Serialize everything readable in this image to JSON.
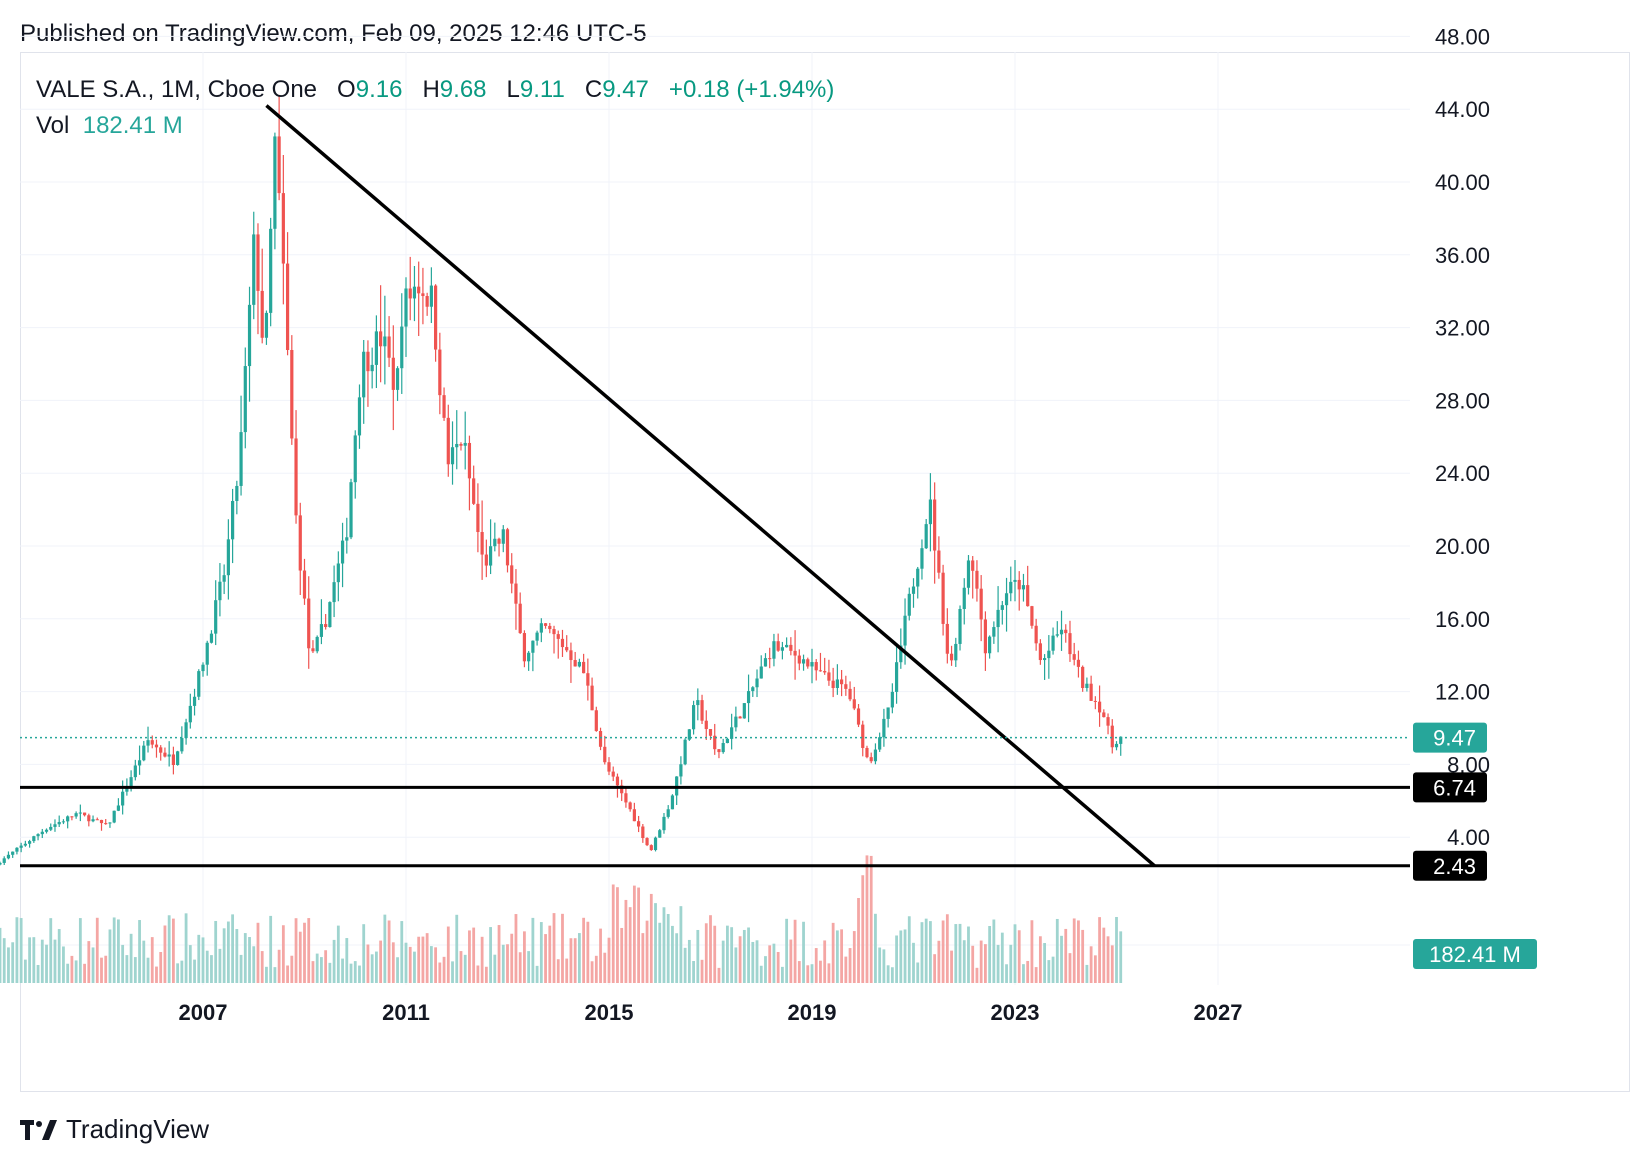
{
  "header": {
    "published": "Published on TradingView.com, Feb 09, 2025 12:46 UTC-5"
  },
  "legend": {
    "symbol": "VALE S.A., 1M, Cboe One",
    "o_label": "O",
    "o_value": "9.16",
    "h_label": "H",
    "h_value": "9.68",
    "l_label": "L",
    "l_value": "9.11",
    "c_label": "C",
    "c_value": "9.47",
    "change": "+0.18 (+1.94%)",
    "vol_label": "Vol",
    "vol_value": "182.41 M"
  },
  "footer": {
    "brand": "TradingView",
    "logo_icon": "tradingview-logo-icon"
  },
  "colors": {
    "up": "#26a69a",
    "down": "#ef5350",
    "up_vol": "#9fd4cf",
    "down_vol": "#f4a6a4",
    "line": "#000000",
    "price_label_bg": "#26a69a"
  },
  "chart_data": {
    "type": "candlestick",
    "timeframe": "1M",
    "x_ticks": [
      "2007",
      "2011",
      "2015",
      "2019",
      "2023",
      "2027"
    ],
    "y_ticks": [
      "4.00",
      "8.00",
      "12.00",
      "16.00",
      "20.00",
      "24.00",
      "28.00",
      "32.00",
      "36.00",
      "40.00",
      "44.00",
      "48.00"
    ],
    "ylim": [
      0,
      50
    ],
    "xlim": [
      2003.0,
      2032.7
    ],
    "current_price": {
      "value": 9.47,
      "label": "9.47"
    },
    "horizontal_levels": [
      {
        "value": 6.74,
        "label": "6.74"
      },
      {
        "value": 2.43,
        "label": "2.43"
      }
    ],
    "trendline": {
      "from": [
        2008.25,
        44.2
      ],
      "to": [
        2025.75,
        2.43
      ]
    },
    "volume_label": "182.41 M",
    "price_path": [
      [
        2003.0,
        2.5
      ],
      [
        2004.0,
        4.5
      ],
      [
        2004.6,
        5.3
      ],
      [
        2005.2,
        4.6
      ],
      [
        2006.0,
        9.3
      ],
      [
        2006.5,
        8.2
      ],
      [
        2007.0,
        12.8
      ],
      [
        2007.5,
        18.5
      ],
      [
        2007.8,
        24.5
      ],
      [
        2008.1,
        37.0
      ],
      [
        2008.3,
        30.0
      ],
      [
        2008.5,
        42.0
      ],
      [
        2008.65,
        36.0
      ],
      [
        2008.9,
        22.0
      ],
      [
        2009.2,
        13.5
      ],
      [
        2009.5,
        16.0
      ],
      [
        2009.9,
        20.5
      ],
      [
        2010.2,
        30.0
      ],
      [
        2010.6,
        31.5
      ],
      [
        2010.9,
        28.5
      ],
      [
        2011.0,
        33.0
      ],
      [
        2011.3,
        34.5
      ],
      [
        2011.6,
        33.5
      ],
      [
        2011.9,
        24.5
      ],
      [
        2012.2,
        26.0
      ],
      [
        2012.6,
        19.0
      ],
      [
        2013.0,
        20.5
      ],
      [
        2013.4,
        14.0
      ],
      [
        2013.8,
        15.5
      ],
      [
        2014.2,
        14.5
      ],
      [
        2014.6,
        13.0
      ],
      [
        2015.0,
        8.0
      ],
      [
        2015.5,
        5.5
      ],
      [
        2015.9,
        3.2
      ],
      [
        2016.3,
        6.0
      ],
      [
        2016.8,
        11.5
      ],
      [
        2017.2,
        8.5
      ],
      [
        2017.8,
        11.5
      ],
      [
        2018.3,
        14.5
      ],
      [
        2018.8,
        14.0
      ],
      [
        2019.2,
        13.0
      ],
      [
        2019.8,
        12.0
      ],
      [
        2020.2,
        8.0
      ],
      [
        2020.6,
        11.0
      ],
      [
        2021.0,
        17.0
      ],
      [
        2021.4,
        22.5
      ],
      [
        2021.8,
        13.0
      ],
      [
        2022.2,
        20.0
      ],
      [
        2022.5,
        14.5
      ],
      [
        2022.9,
        17.5
      ],
      [
        2023.2,
        18.0
      ],
      [
        2023.6,
        13.5
      ],
      [
        2024.0,
        15.5
      ],
      [
        2024.4,
        12.5
      ],
      [
        2024.8,
        11.0
      ],
      [
        2025.0,
        9.0
      ],
      [
        2025.1,
        9.47
      ]
    ]
  }
}
